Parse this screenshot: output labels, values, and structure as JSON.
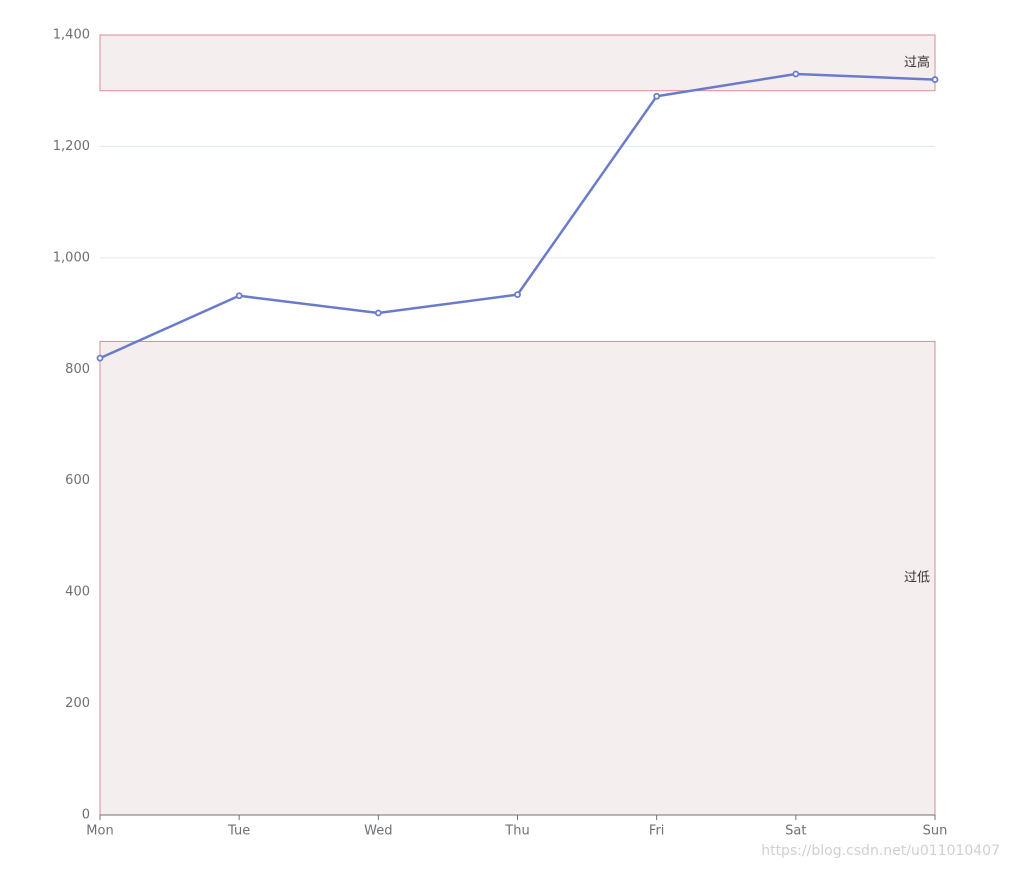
{
  "chart_data": {
    "type": "line",
    "categories": [
      "Mon",
      "Tue",
      "Wed",
      "Thu",
      "Fri",
      "Sat",
      "Sun"
    ],
    "values": [
      820,
      932,
      901,
      934,
      1290,
      1330,
      1320
    ],
    "color": "#6b7bcb",
    "ylim": [
      0,
      1400
    ],
    "yticks": [
      0,
      200,
      400,
      600,
      800,
      {
        "value": 1000,
        "label": "1,000"
      },
      {
        "value": 1200,
        "label": "1,200"
      },
      {
        "value": 1400,
        "label": "1,400"
      }
    ],
    "grid": true,
    "mark_areas": [
      {
        "label": "过高",
        "from": 1300,
        "to": 1400
      },
      {
        "label": "过低",
        "from": 0,
        "to": 850
      }
    ],
    "mark_area_color": "#f5eeef",
    "mark_area_border": "#dd8a95"
  },
  "watermark": "https://blog.csdn.net/u011010407"
}
